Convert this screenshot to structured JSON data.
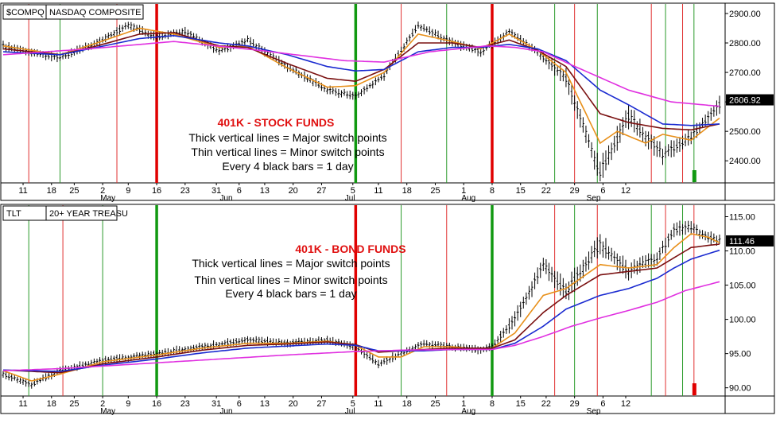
{
  "colors": {
    "background": "#ffffff",
    "bars": "#000000",
    "thin_red_line": "#e03030",
    "thin_green_line": "#2a9a2a",
    "thick_red_line": "#e00000",
    "thick_green_line": "#119911",
    "ma_fast": "#e8901a",
    "ma_mid": "#7a1010",
    "ma_slow": "#1a2ad0",
    "ma_long": "#e030e0",
    "annotation_title": "#e01010",
    "annotation_text": "#000000",
    "price_flag_bg": "#000000",
    "price_flag_text": "#ffffff"
  },
  "chart_data": [
    {
      "type": "bar",
      "symbol": "$COMPQ",
      "name": "NASDAQ COMPOSITE",
      "annotation": {
        "title": "401K - STOCK FUNDS",
        "lines": [
          "Thick vertical lines = Major switch points",
          "Thin vertical lines = Minor switch points",
          "Every 4 black bars = 1 day"
        ]
      },
      "ylim": [
        2325,
        2935
      ],
      "y_ticks": [
        "2900.00",
        "2800.00",
        "2700.00",
        "2600.00",
        "2500.00",
        "2400.00"
      ],
      "last_price": "2606.92",
      "x_ticks": [
        "11",
        "18",
        "25",
        "2",
        "9",
        "16",
        "23",
        "31",
        "6",
        "13",
        "20",
        "27",
        "5",
        "11",
        "18",
        "25",
        "1",
        "8",
        "15",
        "22",
        "29",
        "6",
        "12"
      ],
      "month_labels": [
        "May",
        "Jun",
        "Jul",
        "Aug",
        "Sep"
      ],
      "anchors": {
        "x": [
          0,
          9,
          20,
          33,
          44,
          54,
          64,
          76,
          86,
          100,
          114,
          124,
          134,
          146,
          158,
          168,
          178,
          188,
          198,
          210,
          220,
          232,
          242,
          252
        ],
        "close": [
          2790,
          2770,
          2750,
          2800,
          2860,
          2820,
          2840,
          2770,
          2810,
          2720,
          2640,
          2620,
          2690,
          2860,
          2800,
          2770,
          2840,
          2770,
          2680,
          2360,
          2550,
          2420,
          2480,
          2590
        ],
        "spread": [
          30,
          30,
          30,
          30,
          30,
          30,
          30,
          30,
          30,
          30,
          30,
          30,
          30,
          30,
          30,
          30,
          30,
          30,
          60,
          80,
          70,
          60,
          50,
          50
        ]
      },
      "moving_averages": [
        {
          "key": "ma_fast",
          "x": [
            0,
            20,
            33,
            48,
            60,
            76,
            86,
            100,
            114,
            124,
            134,
            146,
            158,
            168,
            178,
            188,
            198,
            210,
            216,
            226,
            232,
            242,
            252
          ],
          "values": [
            2790,
            2760,
            2800,
            2850,
            2830,
            2785,
            2790,
            2715,
            2650,
            2655,
            2700,
            2830,
            2805,
            2780,
            2830,
            2775,
            2700,
            2460,
            2500,
            2460,
            2490,
            2470,
            2545
          ]
        },
        {
          "key": "ma_mid",
          "x": [
            0,
            20,
            33,
            48,
            60,
            76,
            86,
            100,
            114,
            124,
            134,
            146,
            158,
            168,
            178,
            188,
            198,
            210,
            220,
            232,
            242,
            252
          ],
          "values": [
            2780,
            2760,
            2790,
            2830,
            2835,
            2790,
            2785,
            2730,
            2680,
            2670,
            2710,
            2800,
            2800,
            2785,
            2810,
            2775,
            2720,
            2560,
            2530,
            2510,
            2505,
            2525
          ]
        },
        {
          "key": "ma_slow",
          "x": [
            0,
            20,
            33,
            48,
            60,
            76,
            86,
            100,
            114,
            124,
            134,
            146,
            158,
            168,
            178,
            188,
            198,
            210,
            220,
            232,
            242,
            252
          ],
          "values": [
            2770,
            2760,
            2785,
            2815,
            2825,
            2800,
            2790,
            2760,
            2720,
            2705,
            2710,
            2770,
            2785,
            2785,
            2795,
            2780,
            2740,
            2640,
            2590,
            2525,
            2520,
            2525
          ]
        },
        {
          "key": "ma_long",
          "x": [
            0,
            30,
            60,
            90,
            120,
            134,
            150,
            170,
            180,
            190,
            200,
            220,
            235,
            252
          ],
          "values": [
            2760,
            2780,
            2805,
            2775,
            2740,
            2735,
            2770,
            2790,
            2785,
            2770,
            2725,
            2640,
            2600,
            2585
          ]
        }
      ],
      "switch_lines": [
        {
          "x": 9,
          "kind": "minor",
          "color": "red"
        },
        {
          "x": 20,
          "kind": "minor",
          "color": "green"
        },
        {
          "x": 40,
          "kind": "minor",
          "color": "red"
        },
        {
          "x": 54,
          "kind": "major",
          "color": "red"
        },
        {
          "x": 124,
          "kind": "major",
          "color": "green"
        },
        {
          "x": 140,
          "kind": "minor",
          "color": "red"
        },
        {
          "x": 156,
          "kind": "minor",
          "color": "green"
        },
        {
          "x": 172,
          "kind": "major",
          "color": "red"
        },
        {
          "x": 194,
          "kind": "minor",
          "color": "green"
        },
        {
          "x": 201,
          "kind": "minor",
          "color": "red"
        },
        {
          "x": 209,
          "kind": "minor",
          "color": "green"
        },
        {
          "x": 228,
          "kind": "minor",
          "color": "red"
        },
        {
          "x": 233,
          "kind": "minor",
          "color": "green"
        },
        {
          "x": 239,
          "kind": "minor",
          "color": "red"
        },
        {
          "x": 243,
          "kind": "minor",
          "color": "green"
        }
      ],
      "signal": {
        "x": 243,
        "color": "green",
        "direction": "up"
      }
    },
    {
      "type": "bar",
      "symbol": "TLT",
      "name": "20+ YEAR TREASU",
      "annotation": {
        "title": "401K - BOND FUNDS",
        "lines": [
          "Thick vertical lines = Major switch points",
          "Thin vertical lines = Minor switch points",
          "Every 4 black bars = 1 day"
        ]
      },
      "ylim": [
        88.8,
        116.8
      ],
      "y_ticks": [
        "115.00",
        "110.00",
        "105.00",
        "100.00",
        "95.00",
        "90.00"
      ],
      "last_price": "111.46",
      "x_ticks": [
        "11",
        "18",
        "25",
        "2",
        "9",
        "16",
        "23",
        "31",
        "6",
        "13",
        "20",
        "27",
        "5",
        "11",
        "18",
        "25",
        "1",
        "8",
        "15",
        "22",
        "29",
        "6",
        "12"
      ],
      "month_labels": [
        "May",
        "Jun",
        "Jul",
        "Aug",
        "Sep"
      ],
      "anchors": {
        "x": [
          0,
          10,
          20,
          35,
          54,
          70,
          86,
          100,
          114,
          124,
          132,
          140,
          148,
          158,
          168,
          172,
          180,
          190,
          198,
          210,
          220,
          230,
          236,
          242,
          248,
          252
        ],
        "close": [
          92,
          90.5,
          92.5,
          94,
          95,
          96,
          97,
          96.5,
          97,
          96,
          93.5,
          95,
          96.5,
          96,
          95.5,
          96,
          100,
          108,
          104,
          111,
          107,
          109,
          113,
          113.5,
          112,
          111.5
        ],
        "spread": [
          1.2,
          1.2,
          1.2,
          1.2,
          1.2,
          1.2,
          1.2,
          1.2,
          1.2,
          1.2,
          1.2,
          1.2,
          1.2,
          1.2,
          1.2,
          1.2,
          2.5,
          3,
          3,
          3,
          2.5,
          2,
          2,
          2,
          1.5,
          1.5
        ]
      },
      "moving_averages": [
        {
          "key": "ma_fast",
          "x": [
            0,
            10,
            20,
            35,
            54,
            70,
            86,
            100,
            114,
            124,
            132,
            140,
            148,
            158,
            168,
            172,
            180,
            190,
            198,
            210,
            220,
            230,
            236,
            242,
            248,
            252
          ],
          "values": [
            92.5,
            91,
            92,
            93.8,
            94.8,
            95.8,
            96.5,
            96.5,
            96.8,
            96.2,
            94.5,
            94.5,
            96,
            96,
            95.6,
            95.8,
            98,
            103.5,
            104.5,
            108,
            107.5,
            108,
            110.5,
            112.5,
            112,
            111.2
          ]
        },
        {
          "key": "ma_mid",
          "x": [
            0,
            20,
            35,
            54,
            70,
            86,
            100,
            114,
            124,
            132,
            148,
            158,
            172,
            180,
            190,
            198,
            210,
            220,
            230,
            236,
            242,
            252
          ],
          "values": [
            92.6,
            92.2,
            93.5,
            94.5,
            95.5,
            96.2,
            96.4,
            96.7,
            96.3,
            95.2,
            95.6,
            95.8,
            95.8,
            97,
            101,
            103.5,
            106.5,
            107,
            107.5,
            109,
            110.5,
            111
          ]
        },
        {
          "key": "ma_slow",
          "x": [
            0,
            20,
            35,
            54,
            70,
            86,
            100,
            114,
            124,
            132,
            148,
            158,
            172,
            180,
            190,
            198,
            210,
            220,
            230,
            236,
            242,
            252
          ],
          "values": [
            92.6,
            92.4,
            93.3,
            94.2,
            95.1,
            95.8,
            96.1,
            96.4,
            96.2,
            95.4,
            95.4,
            95.6,
            95.6,
            96.5,
            99,
            101.5,
            103.5,
            104.5,
            106,
            107.5,
            108.8,
            110.1
          ]
        },
        {
          "key": "ma_long",
          "x": [
            0,
            20,
            40,
            60,
            80,
            100,
            124,
            140,
            160,
            172,
            180,
            190,
            200,
            210,
            220,
            230,
            240,
            252
          ],
          "values": [
            92.5,
            92.8,
            93.3,
            93.8,
            94.3,
            94.8,
            95.3,
            95.5,
            95.6,
            95.6,
            96.2,
            97.5,
            99,
            100.2,
            101.3,
            102.5,
            104.2,
            105.5
          ]
        }
      ],
      "switch_lines": [
        {
          "x": 9,
          "kind": "minor",
          "color": "green"
        },
        {
          "x": 21,
          "kind": "minor",
          "color": "red"
        },
        {
          "x": 35,
          "kind": "minor",
          "color": "green"
        },
        {
          "x": 54,
          "kind": "major",
          "color": "green"
        },
        {
          "x": 124,
          "kind": "major",
          "color": "red"
        },
        {
          "x": 140,
          "kind": "minor",
          "color": "green"
        },
        {
          "x": 156,
          "kind": "minor",
          "color": "red"
        },
        {
          "x": 172,
          "kind": "major",
          "color": "green"
        },
        {
          "x": 194,
          "kind": "minor",
          "color": "red"
        },
        {
          "x": 201,
          "kind": "minor",
          "color": "green"
        },
        {
          "x": 209,
          "kind": "minor",
          "color": "red"
        },
        {
          "x": 228,
          "kind": "minor",
          "color": "green"
        },
        {
          "x": 233,
          "kind": "minor",
          "color": "red"
        },
        {
          "x": 239,
          "kind": "minor",
          "color": "green"
        },
        {
          "x": 243,
          "kind": "minor",
          "color": "red"
        }
      ],
      "signal": {
        "x": 243,
        "color": "red",
        "direction": "down"
      }
    }
  ]
}
